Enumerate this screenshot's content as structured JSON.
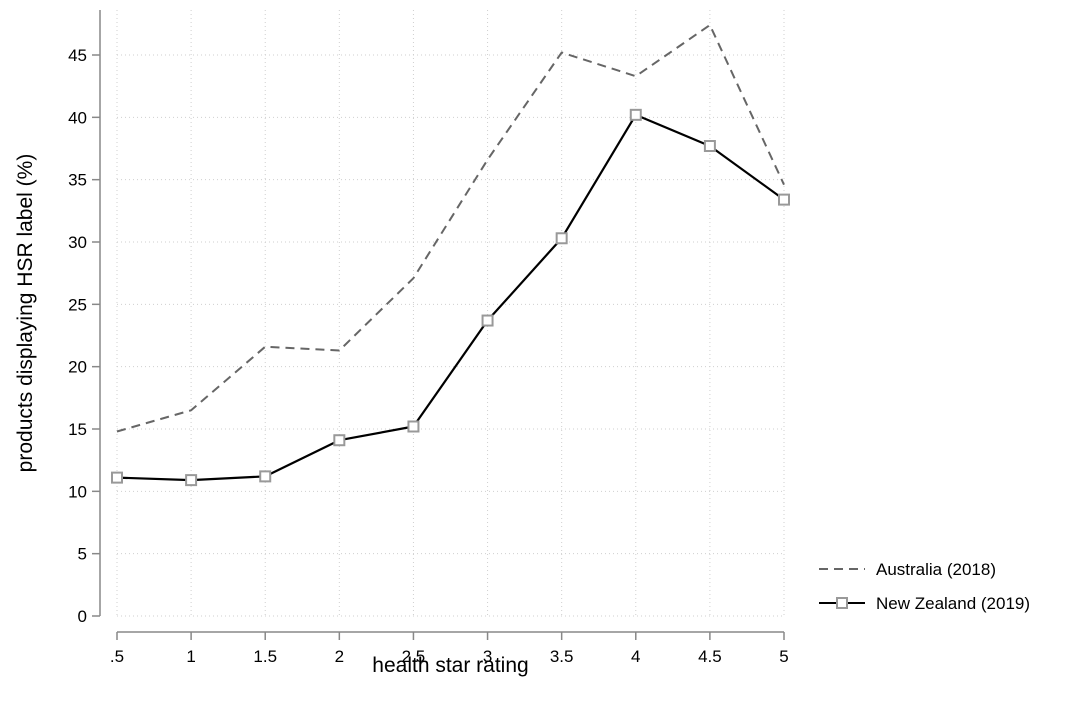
{
  "chart_data": {
    "type": "line",
    "title": "",
    "xlabel": "health star rating",
    "ylabel": "products displaying HSR label (%)",
    "x": [
      0.5,
      1,
      1.5,
      2,
      2.5,
      3,
      3.5,
      4,
      4.5,
      5
    ],
    "x_tick_labels": [
      ".5",
      "1",
      "1.5",
      "2",
      "2.5",
      "3",
      "3.5",
      "4",
      "4.5",
      "5"
    ],
    "y_ticks": [
      0,
      5,
      10,
      15,
      20,
      25,
      30,
      35,
      40,
      45
    ],
    "y_tick_labels": [
      "0",
      "5",
      "10",
      "15",
      "20",
      "25",
      "30",
      "35",
      "40",
      "45"
    ],
    "xlim": [
      0.5,
      5
    ],
    "ylim": [
      0,
      48
    ],
    "grid": true,
    "legend_position": "right",
    "series": [
      {
        "name": "Australia (2018)",
        "style": "dashed",
        "color": "#666666",
        "marker": "none",
        "values": [
          14.8,
          16.5,
          21.6,
          21.3,
          27.1,
          36.6,
          45.2,
          43.3,
          47.4,
          34.6
        ]
      },
      {
        "name": "New Zealand (2019)",
        "style": "solid",
        "color": "#000000",
        "marker": "hollow-square",
        "marker_color": "#999999",
        "values": [
          11.1,
          10.9,
          11.2,
          14.1,
          15.2,
          23.7,
          30.3,
          40.2,
          37.7,
          33.4
        ]
      }
    ]
  }
}
